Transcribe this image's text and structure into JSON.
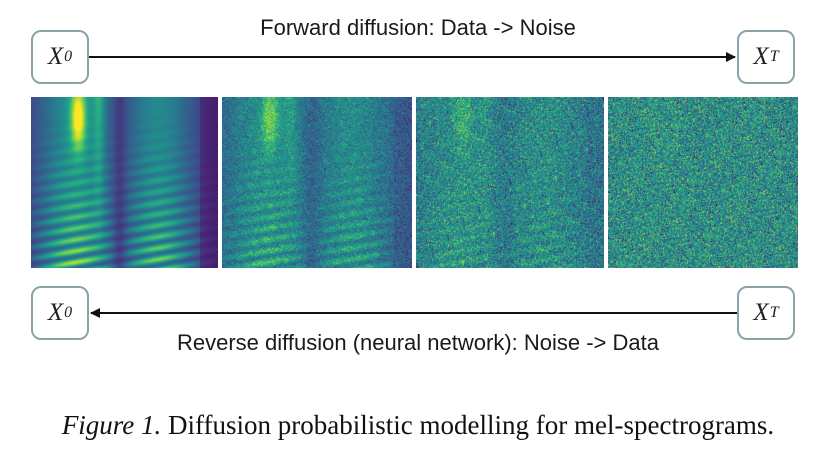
{
  "forward": {
    "label": "Forward diffusion: Data -> Noise",
    "start_node": {
      "symbol": "X",
      "subscript": "0"
    },
    "end_node": {
      "symbol": "X",
      "subscript": "T"
    }
  },
  "reverse": {
    "label": "Reverse diffusion (neural network): Noise -> Data",
    "start_node": {
      "symbol": "X",
      "subscript": "T"
    },
    "end_node": {
      "symbol": "X",
      "subscript": "0"
    }
  },
  "spectrograms": [
    {
      "noise_level": 0.0
    },
    {
      "noise_level": 0.45
    },
    {
      "noise_level": 0.72
    },
    {
      "noise_level": 0.95
    }
  ],
  "caption": {
    "figure_label": "Figure 1.",
    "text": " Diffusion probabilistic modelling for mel-spectrograms."
  },
  "colors": {
    "node_border": "#8aa3a9",
    "arrow": "#111111",
    "colormap": "viridis"
  }
}
